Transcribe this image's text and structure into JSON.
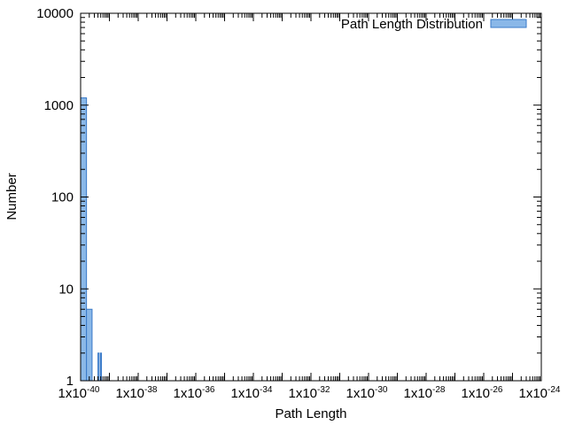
{
  "chart_data": {
    "type": "bar",
    "title": "",
    "xlabel": "Path Length",
    "ylabel": "Number",
    "x_scale": "log",
    "y_scale": "log",
    "xlim": [
      1e-40,
      1e-24
    ],
    "ylim": [
      1,
      10000
    ],
    "x_ticks": [
      {
        "base": "1x10",
        "exp": "-40"
      },
      {
        "base": "1x10",
        "exp": "-38"
      },
      {
        "base": "1x10",
        "exp": "-36"
      },
      {
        "base": "1x10",
        "exp": "-34"
      },
      {
        "base": "1x10",
        "exp": "-32"
      },
      {
        "base": "1x10",
        "exp": "-30"
      },
      {
        "base": "1x10",
        "exp": "-28"
      },
      {
        "base": "1x10",
        "exp": "-26"
      },
      {
        "base": "1x10",
        "exp": "-24"
      }
    ],
    "y_ticks": [
      "1",
      "10",
      "100",
      "1000",
      "10000"
    ],
    "grid": false,
    "legend_position": "top-right",
    "series": [
      {
        "name": "Path Length Distribution",
        "color": "#8ab8e8",
        "edge_color": "#3a7ac8",
        "bins": [
          {
            "x0": 1e-40,
            "x1": 1.6e-40,
            "value": 1200
          },
          {
            "x0": 1.6e-40,
            "x1": 2.5e-40,
            "value": 6
          },
          {
            "x0": 4e-40,
            "x1": 4.4e-40,
            "value": 2
          },
          {
            "x0": 4.9e-40,
            "x1": 5.3e-40,
            "value": 2
          }
        ]
      }
    ]
  }
}
